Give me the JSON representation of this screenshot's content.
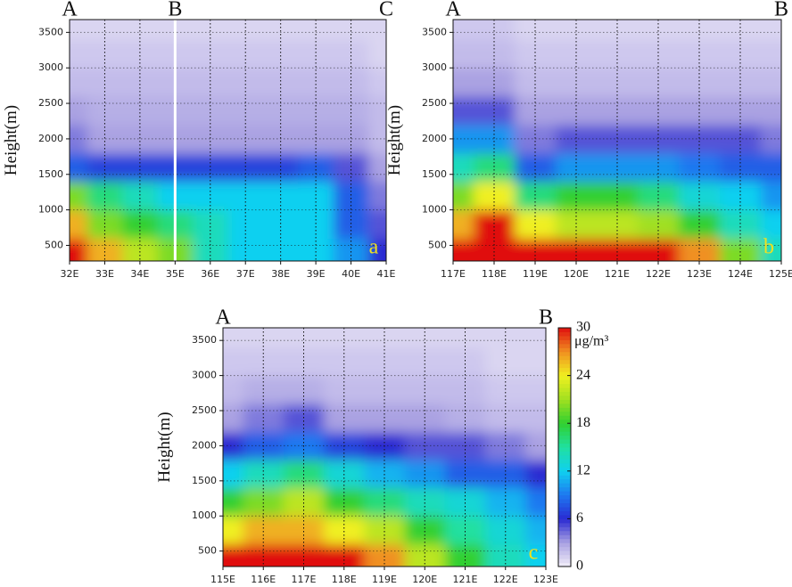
{
  "chart_data": [
    {
      "type": "heatmap",
      "ylabel": "Height(m)",
      "panel_label": "a",
      "section_points": [
        {
          "label": "A",
          "x": 32
        },
        {
          "label": "B",
          "x": 35
        },
        {
          "label": "C",
          "x": 41
        }
      ],
      "divider_x": 35,
      "x": [
        32,
        33,
        34,
        35,
        36,
        37,
        38,
        39,
        40,
        41
      ],
      "y": [
        400,
        800,
        1200,
        1600,
        2000,
        2400,
        2800,
        3200,
        3600
      ],
      "z": [
        [
          30,
          26,
          22,
          20,
          14,
          12,
          12,
          12,
          10,
          6
        ],
        [
          26,
          20,
          18,
          16,
          14,
          12,
          12,
          12,
          8,
          5
        ],
        [
          20,
          16,
          14,
          12,
          12,
          12,
          12,
          12,
          8,
          4
        ],
        [
          8,
          7,
          7,
          7,
          7,
          7,
          7,
          8,
          5,
          3
        ],
        [
          4,
          3,
          3,
          3,
          3,
          3,
          3,
          3,
          3,
          2
        ],
        [
          3,
          2.5,
          2.5,
          2.5,
          2.5,
          2.5,
          2.5,
          2.5,
          2.5,
          2
        ],
        [
          2,
          2,
          2,
          2,
          2,
          2,
          2,
          2,
          2,
          1.5
        ],
        [
          1.5,
          1.5,
          1.5,
          1.5,
          1.5,
          1.5,
          1.5,
          1.5,
          1.5,
          1
        ],
        [
          1,
          1,
          1,
          1,
          1,
          1,
          1,
          1,
          1,
          1
        ]
      ],
      "xlim": [
        32,
        41
      ],
      "ylim": [
        280,
        3680
      ],
      "xticks": [
        {
          "value": 32,
          "label": "32E"
        },
        {
          "value": 33,
          "label": "33E"
        },
        {
          "value": 34,
          "label": "34E"
        },
        {
          "value": 35,
          "label": "35E"
        },
        {
          "value": 36,
          "label": "36E"
        },
        {
          "value": 37,
          "label": "37E"
        },
        {
          "value": 38,
          "label": "38E"
        },
        {
          "value": 39,
          "label": "39E"
        },
        {
          "value": 40,
          "label": "40E"
        },
        {
          "value": 41,
          "label": "41E"
        }
      ],
      "yticks": [
        500,
        1000,
        1500,
        2000,
        2500,
        3000,
        3500
      ],
      "grid": true
    },
    {
      "type": "heatmap",
      "ylabel": "Height(m)",
      "panel_label": "b",
      "section_points": [
        {
          "label": "A",
          "x": 117
        },
        {
          "label": "B",
          "x": 125
        }
      ],
      "x": [
        117,
        118,
        119,
        120,
        121,
        122,
        123,
        124,
        125
      ],
      "y": [
        400,
        800,
        1200,
        1600,
        2000,
        2400,
        2800,
        3200,
        3600
      ],
      "z": [
        [
          30,
          30,
          30,
          30,
          30,
          30,
          27,
          20,
          14
        ],
        [
          26,
          30,
          24,
          22,
          22,
          21,
          18,
          14,
          12
        ],
        [
          20,
          24,
          16,
          18,
          18,
          16,
          13,
          12,
          10
        ],
        [
          14,
          16,
          8,
          10,
          10,
          10,
          9,
          8,
          8
        ],
        [
          10,
          10,
          4,
          5,
          5,
          5,
          5,
          5,
          4
        ],
        [
          5,
          5,
          3,
          3,
          3,
          3,
          3,
          3,
          3
        ],
        [
          3,
          3,
          2,
          2,
          2,
          2,
          2,
          2,
          2
        ],
        [
          2,
          2,
          1.5,
          1.5,
          1.5,
          1.5,
          1.5,
          1.5,
          1.5
        ],
        [
          1.5,
          1.5,
          1,
          1,
          1,
          1,
          1,
          1,
          1
        ]
      ],
      "xlim": [
        117,
        125
      ],
      "ylim": [
        280,
        3680
      ],
      "xticks": [
        {
          "value": 117,
          "label": "117E"
        },
        {
          "value": 118,
          "label": "118E"
        },
        {
          "value": 119,
          "label": "119E"
        },
        {
          "value": 120,
          "label": "120E"
        },
        {
          "value": 121,
          "label": "121E"
        },
        {
          "value": 122,
          "label": "122E"
        },
        {
          "value": 123,
          "label": "123E"
        },
        {
          "value": 124,
          "label": "124E"
        },
        {
          "value": 125,
          "label": "125E"
        }
      ],
      "yticks": [
        500,
        1000,
        1500,
        2000,
        2500,
        3000,
        3500
      ],
      "grid": true
    },
    {
      "type": "heatmap",
      "ylabel": "Height(m)",
      "panel_label": "c",
      "section_points": [
        {
          "label": "A",
          "x": 115
        },
        {
          "label": "B",
          "x": 123
        }
      ],
      "x": [
        115,
        116,
        117,
        118,
        119,
        120,
        121,
        122,
        123
      ],
      "y": [
        400,
        800,
        1200,
        1600,
        2000,
        2400,
        2800,
        3200,
        3600
      ],
      "z": [
        [
          30,
          30,
          30,
          30,
          27,
          22,
          18,
          14,
          12
        ],
        [
          24,
          26,
          26,
          24,
          22,
          18,
          15,
          13,
          11
        ],
        [
          18,
          20,
          22,
          18,
          16,
          14,
          13,
          11,
          9
        ],
        [
          12,
          14,
          16,
          13,
          11,
          10,
          8,
          8,
          6
        ],
        [
          6,
          8,
          9,
          7,
          6,
          5,
          5,
          4,
          3
        ],
        [
          3,
          4,
          5,
          3,
          3,
          3,
          2.5,
          2,
          2
        ],
        [
          2,
          2.5,
          2.5,
          2,
          2,
          2,
          2,
          1.5,
          1.5
        ],
        [
          1.5,
          1.5,
          1.5,
          1.5,
          1.5,
          1.5,
          1.5,
          1,
          1
        ],
        [
          1,
          1,
          1,
          1,
          1,
          1,
          1,
          1,
          1
        ]
      ],
      "xlim": [
        115,
        123
      ],
      "ylim": [
        280,
        3680
      ],
      "xticks": [
        {
          "value": 115,
          "label": "115E"
        },
        {
          "value": 116,
          "label": "116E"
        },
        {
          "value": 117,
          "label": "117E"
        },
        {
          "value": 118,
          "label": "118E"
        },
        {
          "value": 119,
          "label": "119E"
        },
        {
          "value": 120,
          "label": "120E"
        },
        {
          "value": 121,
          "label": "121E"
        },
        {
          "value": 122,
          "label": "122E"
        },
        {
          "value": 123,
          "label": "123E"
        }
      ],
      "yticks": [
        500,
        1000,
        1500,
        2000,
        2500,
        3000,
        3500
      ],
      "grid": true,
      "colorbar": {
        "zlim": [
          0,
          30
        ],
        "zticks": [
          0,
          6,
          12,
          18,
          24,
          30
        ],
        "unit": "μg/m³"
      }
    }
  ],
  "colormap": [
    "#f2eef9",
    "#aaa2e2",
    "#2a2ad2",
    "#1e78f0",
    "#10d0f0",
    "#20e0a0",
    "#30d030",
    "#a0e020",
    "#f0f020",
    "#f09020",
    "#e01010"
  ]
}
